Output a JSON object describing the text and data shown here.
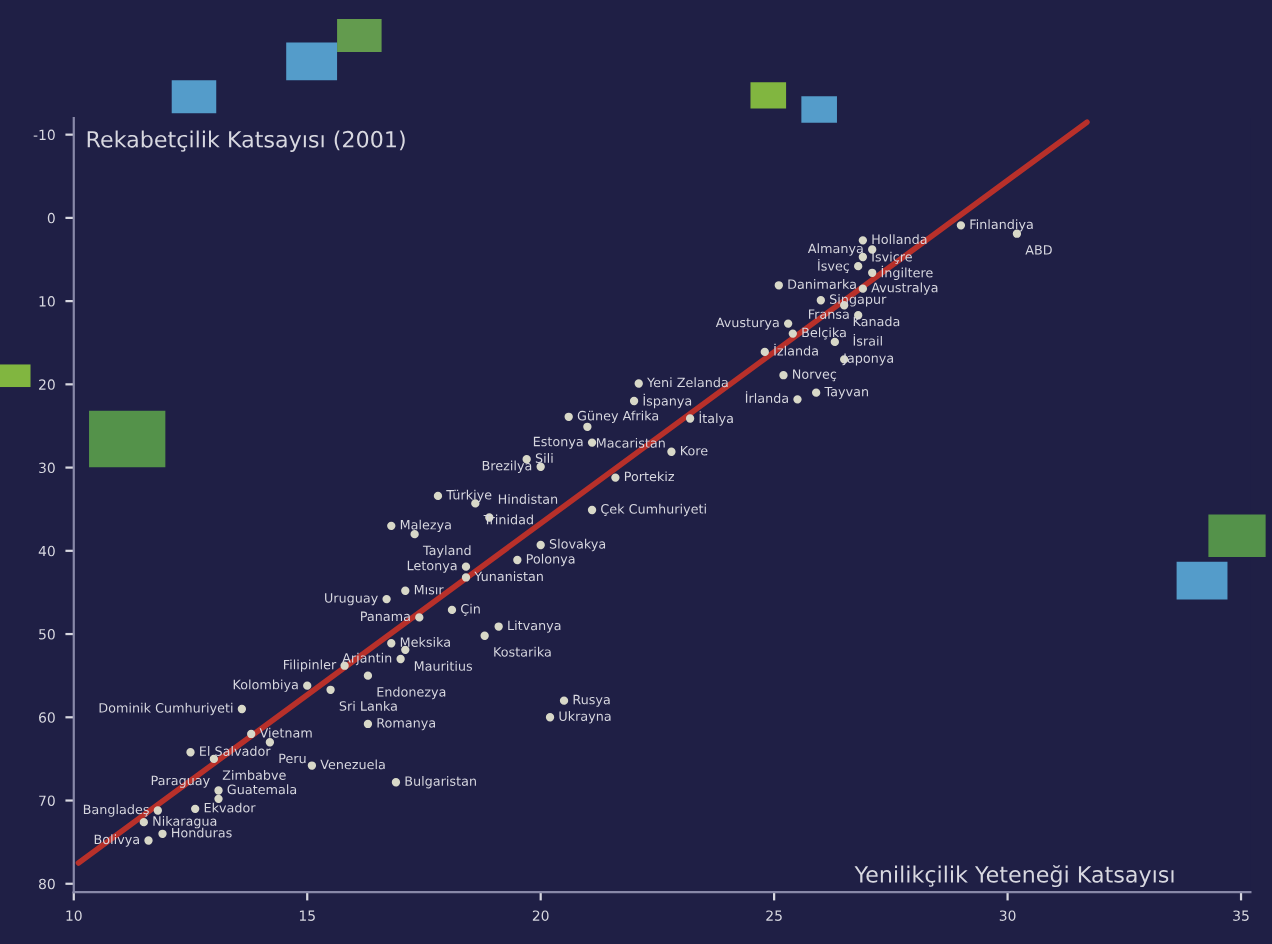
{
  "chart_data": {
    "type": "scatter",
    "ylabel": "Rekabetçilik Katsayısı (2001)",
    "xlabel": "Yenilikçilik Yeteneği Katsayısı",
    "xlim": [
      10,
      35.2
    ],
    "ylim": [
      81,
      -12
    ],
    "xticks": [
      10,
      15,
      20,
      25,
      30,
      35
    ],
    "yticks": [
      -10,
      0,
      10,
      20,
      30,
      40,
      50,
      60,
      70,
      80
    ],
    "grid": false,
    "legend": false,
    "series": [
      {
        "color": "#d8d8c8",
        "marker": "circle",
        "x": [
          29.0,
          30.2,
          26.9,
          27.1,
          26.9,
          26.8,
          27.1,
          26.9,
          25.1,
          26.0,
          26.5,
          26.8,
          25.3,
          25.4,
          24.8,
          26.3,
          26.5,
          25.2,
          25.9,
          25.5,
          22.1,
          22.0,
          20.6,
          21.0,
          21.1,
          19.7,
          20.0,
          23.2,
          22.8,
          21.6,
          21.1,
          17.8,
          18.6,
          18.9,
          16.8,
          17.3,
          20.0,
          19.5,
          18.4,
          18.4,
          17.1,
          16.7,
          18.1,
          17.4,
          19.1,
          16.8,
          17.1,
          18.8,
          17.0,
          15.8,
          16.3,
          15.0,
          15.5,
          13.6,
          16.3,
          20.5,
          20.2,
          13.8,
          14.2,
          12.5,
          13.0,
          15.1,
          11.5,
          13.1,
          16.9,
          12.6,
          11.8,
          13.1,
          11.9,
          11.6
        ],
        "values": [
          0.9,
          1.9,
          2.7,
          3.8,
          4.7,
          5.8,
          6.6,
          8.5,
          8.1,
          9.9,
          10.5,
          11.7,
          12.7,
          13.9,
          16.1,
          14.9,
          17.0,
          18.9,
          21.0,
          21.8,
          19.9,
          22.0,
          23.9,
          25.1,
          27.0,
          29.0,
          29.9,
          24.1,
          28.1,
          31.2,
          35.1,
          33.4,
          34.3,
          36.0,
          37.0,
          38.0,
          39.3,
          41.1,
          41.9,
          43.2,
          44.8,
          45.8,
          47.1,
          48.0,
          49.1,
          51.1,
          51.9,
          50.2,
          53.0,
          53.8,
          55.0,
          56.2,
          56.7,
          59.0,
          60.8,
          58.0,
          60.0,
          62.0,
          63.0,
          64.2,
          65.0,
          65.8,
          72.6,
          68.8,
          67.8,
          71.0,
          71.2,
          69.8,
          74.0,
          74.8
        ]
      },
      {
        "type": "line",
        "color": "#b8302a",
        "x": [
          10.1,
          31.7
        ],
        "values": [
          77.5,
          -11.5
        ]
      }
    ],
    "annotations": [
      {
        "text": "Finlandiya",
        "x": 29.0,
        "y": 0.9
      },
      {
        "text": "ABD",
        "x": 30.2,
        "y": 1.9
      },
      {
        "text": "Hollanda",
        "x": 26.9,
        "y": 2.7
      },
      {
        "text": "Almanya",
        "x": 27.1,
        "y": 3.8
      },
      {
        "text": "İsviçre",
        "x": 26.9,
        "y": 4.7
      },
      {
        "text": "İsveç",
        "x": 26.8,
        "y": 5.8
      },
      {
        "text": "İngiltere",
        "x": 27.1,
        "y": 6.6
      },
      {
        "text": "Avustralya",
        "x": 26.9,
        "y": 8.5
      },
      {
        "text": "Danimarka",
        "x": 25.1,
        "y": 8.1
      },
      {
        "text": "Singapur",
        "x": 26.0,
        "y": 9.9
      },
      {
        "text": "Kanada",
        "x": 26.5,
        "y": 10.5
      },
      {
        "text": "Fransa",
        "x": 26.8,
        "y": 11.7
      },
      {
        "text": "Avusturya",
        "x": 25.3,
        "y": 12.7
      },
      {
        "text": "Belçika",
        "x": 25.4,
        "y": 13.9
      },
      {
        "text": "İzlanda",
        "x": 24.8,
        "y": 16.1
      },
      {
        "text": "Japonya",
        "x": 26.3,
        "y": 14.9
      },
      {
        "text": "İsrail",
        "x": 26.5,
        "y": 17.0
      },
      {
        "text": "Norveç",
        "x": 25.2,
        "y": 18.9
      },
      {
        "text": "Tayvan",
        "x": 25.9,
        "y": 21.0
      },
      {
        "text": "İrlanda",
        "x": 25.5,
        "y": 21.8
      },
      {
        "text": "Yeni Zelanda",
        "x": 22.1,
        "y": 19.9
      },
      {
        "text": "İspanya",
        "x": 22.0,
        "y": 22.0
      },
      {
        "text": "Güney Afrika",
        "x": 20.6,
        "y": 23.9
      },
      {
        "text": "Macaristan",
        "x": 21.0,
        "y": 25.1
      },
      {
        "text": "Estonya",
        "x": 21.1,
        "y": 27.0
      },
      {
        "text": "Şili",
        "x": 19.7,
        "y": 29.0
      },
      {
        "text": "Brezilya",
        "x": 20.0,
        "y": 29.9
      },
      {
        "text": "İtalya",
        "x": 23.2,
        "y": 24.1
      },
      {
        "text": "Kore",
        "x": 22.8,
        "y": 28.1
      },
      {
        "text": "Portekiz",
        "x": 21.6,
        "y": 31.2
      },
      {
        "text": "Çek Cumhuriyeti",
        "x": 21.1,
        "y": 35.1
      },
      {
        "text": "Türkiye",
        "x": 17.8,
        "y": 33.4
      },
      {
        "text": "Trinidad",
        "x": 18.6,
        "y": 34.3
      },
      {
        "text": "Hindistan",
        "x": 18.9,
        "y": 36.0
      },
      {
        "text": "Malezya",
        "x": 16.8,
        "y": 37.0
      },
      {
        "text": "Tayland",
        "x": 17.3,
        "y": 38.0
      },
      {
        "text": "Slovakya",
        "x": 20.0,
        "y": 39.3
      },
      {
        "text": "Polonya",
        "x": 19.5,
        "y": 41.1
      },
      {
        "text": "Letonya",
        "x": 18.4,
        "y": 41.9
      },
      {
        "text": "Yunanistan",
        "x": 18.4,
        "y": 43.2
      },
      {
        "text": "Mısır",
        "x": 17.1,
        "y": 44.8
      },
      {
        "text": "Uruguay",
        "x": 16.7,
        "y": 45.8
      },
      {
        "text": "Çin",
        "x": 18.1,
        "y": 47.1
      },
      {
        "text": "Panama",
        "x": 17.4,
        "y": 48.0
      },
      {
        "text": "Litvanya",
        "x": 19.1,
        "y": 49.1
      },
      {
        "text": "Meksika",
        "x": 16.8,
        "y": 51.1
      },
      {
        "text": "Mauritius",
        "x": 17.1,
        "y": 51.9
      },
      {
        "text": "Kostarika",
        "x": 18.8,
        "y": 50.2
      },
      {
        "text": "Arjantin",
        "x": 17.0,
        "y": 53.0
      },
      {
        "text": "Filipinler",
        "x": 15.8,
        "y": 53.8
      },
      {
        "text": "Endonezya",
        "x": 16.3,
        "y": 55.0
      },
      {
        "text": "Kolombiya",
        "x": 15.0,
        "y": 56.2
      },
      {
        "text": "Sri Lanka",
        "x": 15.5,
        "y": 56.7
      },
      {
        "text": "Dominik Cumhuriyeti",
        "x": 13.6,
        "y": 59.0
      },
      {
        "text": "Romanya",
        "x": 16.3,
        "y": 60.8
      },
      {
        "text": "Rusya",
        "x": 20.5,
        "y": 58.0
      },
      {
        "text": "Ukrayna",
        "x": 20.2,
        "y": 60.0
      },
      {
        "text": "Vietnam",
        "x": 13.8,
        "y": 62.0
      },
      {
        "text": "Peru",
        "x": 14.2,
        "y": 63.0
      },
      {
        "text": "El Salvador",
        "x": 12.5,
        "y": 64.2
      },
      {
        "text": "Zimbabve",
        "x": 13.0,
        "y": 65.0
      },
      {
        "text": "Venezuela",
        "x": 15.1,
        "y": 65.8
      },
      {
        "text": "Nikaragua",
        "x": 11.5,
        "y": 72.6
      },
      {
        "text": "Guatemala",
        "x": 13.1,
        "y": 68.8
      },
      {
        "text": "Bulgaristan",
        "x": 16.9,
        "y": 67.8
      },
      {
        "text": "Ekvador",
        "x": 12.6,
        "y": 71.0
      },
      {
        "text": "Bangladeş",
        "x": 11.8,
        "y": 71.2
      },
      {
        "text": "Paraguay",
        "x": 13.1,
        "y": 69.8
      },
      {
        "text": "Honduras",
        "x": 11.9,
        "y": 74.0
      },
      {
        "text": "Bolivya",
        "x": 11.6,
        "y": 74.8
      }
    ]
  }
}
